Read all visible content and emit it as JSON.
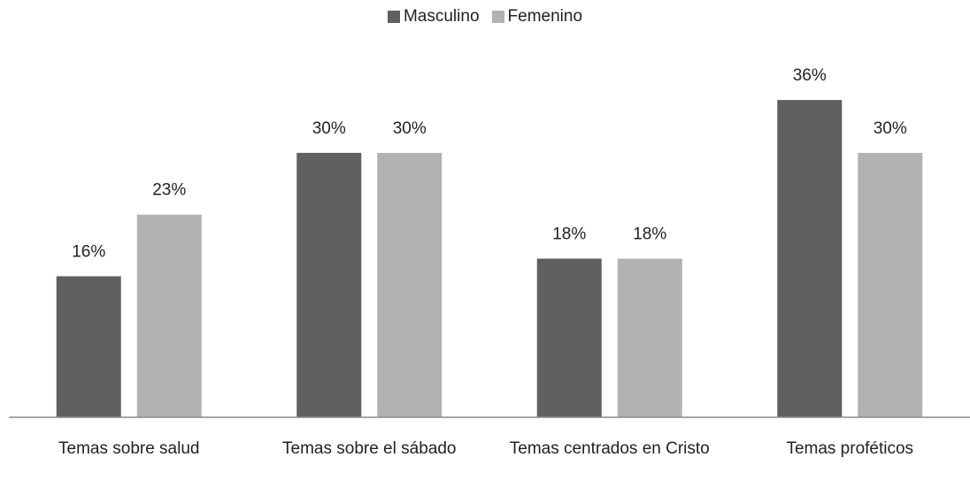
{
  "chart_data": {
    "type": "bar",
    "categories": [
      "Temas sobre salud",
      "Temas sobre el sábado",
      "Temas centrados en Cristo",
      "Temas proféticos"
    ],
    "series": [
      {
        "name": "Masculino",
        "color": "#606060",
        "values": [
          16,
          30,
          18,
          36
        ],
        "value_labels": [
          "16%",
          "30%",
          "18%",
          "36%"
        ]
      },
      {
        "name": "Femenino",
        "color": "#b2b2b2",
        "values": [
          23,
          30,
          18,
          30
        ],
        "value_labels": [
          "23%",
          "30%",
          "18%",
          "30%"
        ]
      }
    ],
    "legend": "top"
  }
}
